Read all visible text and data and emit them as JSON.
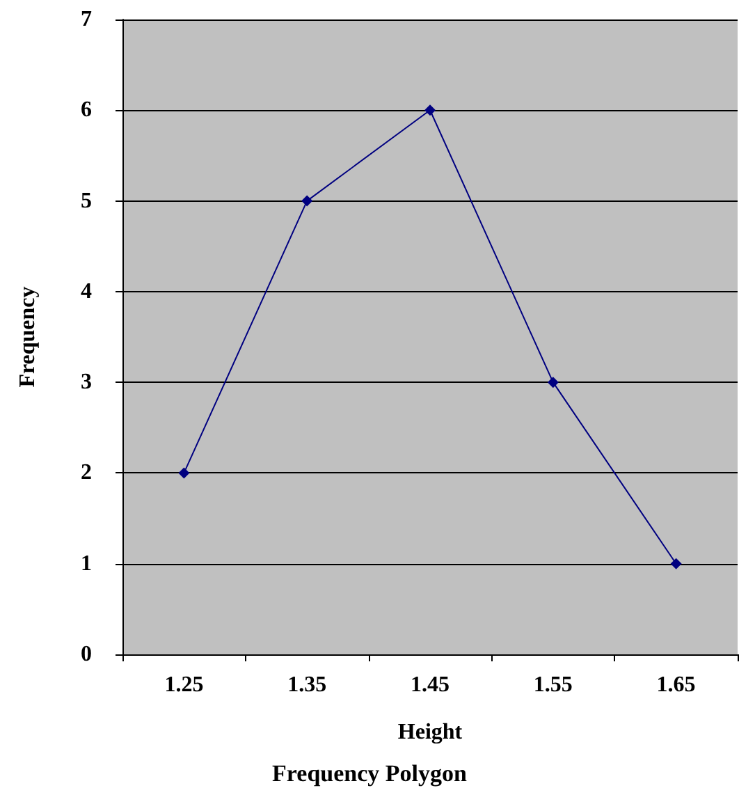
{
  "chart_data": {
    "type": "line",
    "title": "Frequency Polygon",
    "xlabel": "Height",
    "ylabel": "Frequency",
    "categories": [
      "1.25",
      "1.35",
      "1.45",
      "1.55",
      "1.65"
    ],
    "series": [
      {
        "color": "#000080",
        "values": [
          2,
          5,
          6,
          3,
          1
        ]
      }
    ],
    "ylim": [
      0,
      7
    ],
    "yticks": [
      0,
      1,
      2,
      3,
      4,
      5,
      6,
      7
    ],
    "grid": "y",
    "marker": "diamond",
    "line_style": "solid"
  }
}
